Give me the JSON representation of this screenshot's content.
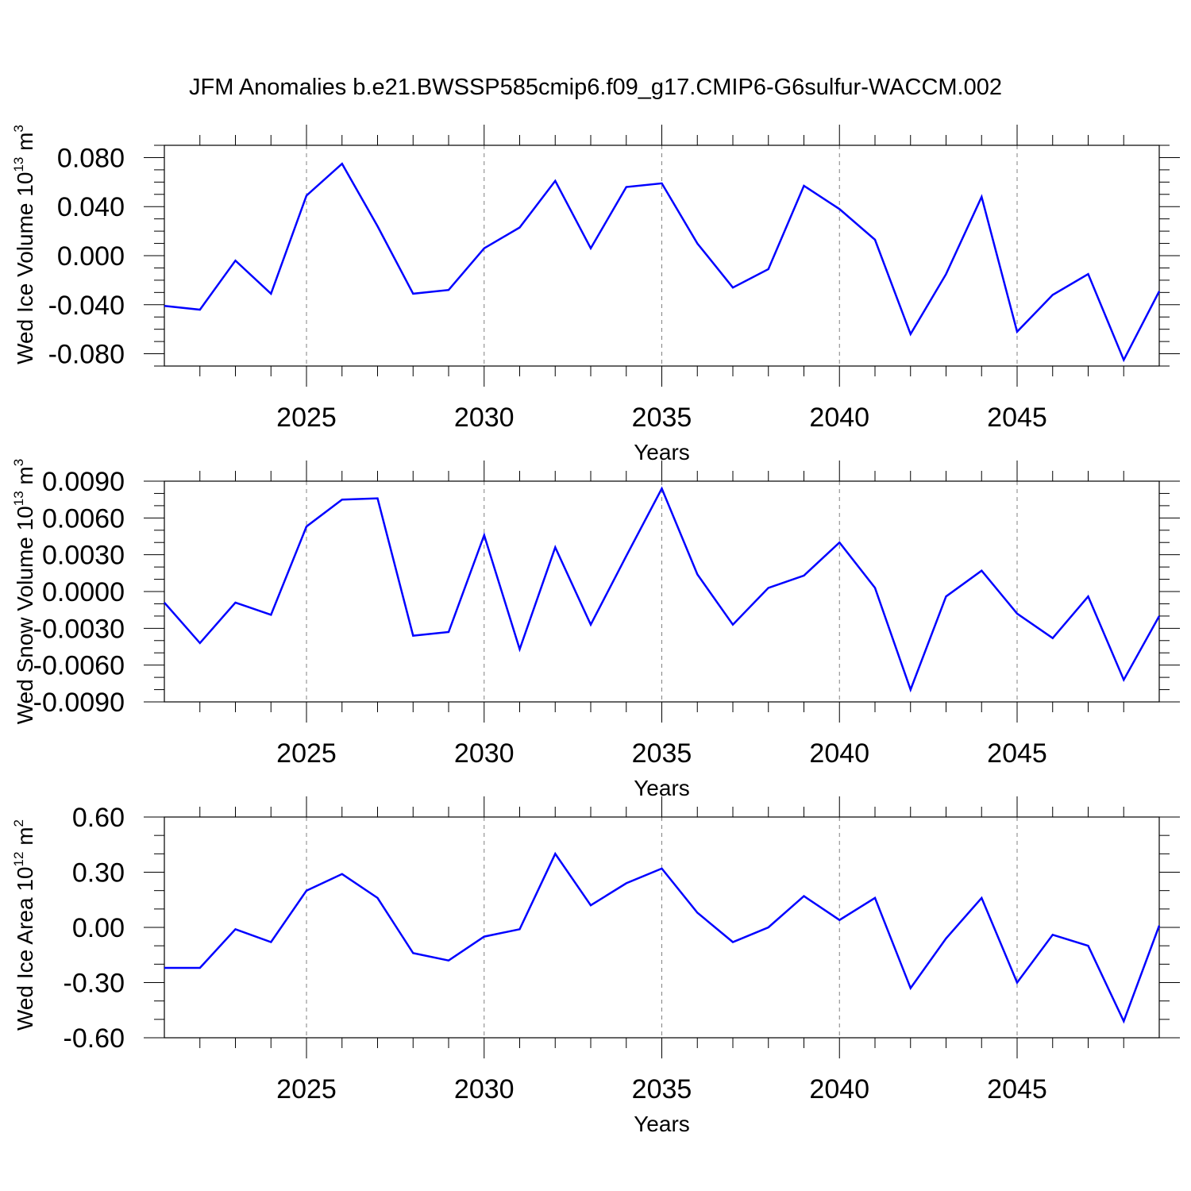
{
  "title": "JFM Anomalies b.e21.BWSSP585cmip6.f09_g17.CMIP6-G6sulfur-WACCM.002",
  "colors": {
    "line": "#0000ff",
    "axis": "#000000",
    "grid": "#808080",
    "background": "#ffffff"
  },
  "chart_data": [
    {
      "type": "line",
      "xlabel": "Years",
      "ylabel_parts": [
        "Wed Ice Volume 10",
        "13",
        " m",
        "3"
      ],
      "xlim": [
        2021,
        2049
      ],
      "ylim": [
        -0.09,
        0.09
      ],
      "x_ticks": [
        2025,
        2030,
        2035,
        2040,
        2045
      ],
      "x_tick_labels": [
        "2025",
        "2030",
        "2035",
        "2040",
        "2045"
      ],
      "y_ticks": [
        -0.08,
        -0.04,
        0.0,
        0.04,
        0.08
      ],
      "y_tick_labels": [
        "-0.080",
        "-0.040",
        "0.000",
        "0.040",
        "0.080"
      ],
      "y_minor_step": 0.01,
      "grid": "dashed vertical at major x ticks",
      "series": [
        {
          "x": [
            2021,
            2022,
            2023,
            2024,
            2025,
            2026,
            2027,
            2028,
            2029,
            2030,
            2031,
            2032,
            2033,
            2034,
            2035,
            2036,
            2037,
            2038,
            2039,
            2040,
            2041,
            2042,
            2043,
            2044,
            2045,
            2046,
            2047,
            2048,
            2049
          ],
          "values": [
            -0.041,
            -0.044,
            -0.004,
            -0.031,
            0.049,
            0.075,
            0.024,
            -0.031,
            -0.028,
            0.006,
            0.023,
            0.061,
            0.006,
            0.056,
            0.059,
            0.01,
            -0.026,
            -0.011,
            0.057,
            0.038,
            0.013,
            -0.064,
            -0.015,
            0.048,
            -0.062,
            -0.032,
            -0.015,
            -0.085,
            -0.029
          ]
        }
      ]
    },
    {
      "type": "line",
      "xlabel": "Years",
      "ylabel_parts": [
        "Wed Snow Volume 10",
        "13",
        " m",
        "3"
      ],
      "xlim": [
        2021,
        2049
      ],
      "ylim": [
        -0.009,
        0.009
      ],
      "x_ticks": [
        2025,
        2030,
        2035,
        2040,
        2045
      ],
      "x_tick_labels": [
        "2025",
        "2030",
        "2035",
        "2040",
        "2045"
      ],
      "y_ticks": [
        -0.009,
        -0.006,
        -0.003,
        0.0,
        0.003,
        0.006,
        0.009
      ],
      "y_tick_labels": [
        "-0.0090",
        "-0.0060",
        "-0.0030",
        "0.0000",
        "0.0030",
        "0.0060",
        "0.0090"
      ],
      "y_minor_step": 0.001,
      "grid": "dashed vertical at major x ticks",
      "series": [
        {
          "x": [
            2021,
            2022,
            2023,
            2024,
            2025,
            2026,
            2027,
            2028,
            2029,
            2030,
            2031,
            2032,
            2033,
            2034,
            2035,
            2036,
            2037,
            2038,
            2039,
            2040,
            2041,
            2042,
            2043,
            2044,
            2045,
            2046,
            2047,
            2048,
            2049
          ],
          "values": [
            -0.0009,
            -0.0042,
            -0.0009,
            -0.0019,
            0.0053,
            0.0075,
            0.0076,
            -0.0036,
            -0.0033,
            0.0046,
            -0.0047,
            0.0036,
            -0.0027,
            0.0029,
            0.0084,
            0.0014,
            -0.0027,
            0.0003,
            0.0013,
            0.004,
            0.0003,
            -0.008,
            -0.0004,
            0.0017,
            -0.0018,
            -0.0038,
            -0.0004,
            -0.0072,
            -0.002
          ]
        }
      ]
    },
    {
      "type": "line",
      "xlabel": "Years",
      "ylabel_parts": [
        "Wed Ice Area 10",
        "12",
        " m",
        "2"
      ],
      "xlim": [
        2021,
        2049
      ],
      "ylim": [
        -0.6,
        0.6
      ],
      "x_ticks": [
        2025,
        2030,
        2035,
        2040,
        2045
      ],
      "x_tick_labels": [
        "2025",
        "2030",
        "2035",
        "2040",
        "2045"
      ],
      "y_ticks": [
        -0.6,
        -0.3,
        0.0,
        0.3,
        0.6
      ],
      "y_tick_labels": [
        "-0.60",
        "-0.30",
        "0.00",
        "0.30",
        "0.60"
      ],
      "y_minor_step": 0.1,
      "grid": "dashed vertical at major x ticks",
      "series": [
        {
          "x": [
            2021,
            2022,
            2023,
            2024,
            2025,
            2026,
            2027,
            2028,
            2029,
            2030,
            2031,
            2032,
            2033,
            2034,
            2035,
            2036,
            2037,
            2038,
            2039,
            2040,
            2041,
            2042,
            2043,
            2044,
            2045,
            2046,
            2047,
            2048,
            2049
          ],
          "values": [
            -0.22,
            -0.22,
            -0.01,
            -0.08,
            0.2,
            0.29,
            0.16,
            -0.14,
            -0.18,
            -0.05,
            -0.01,
            0.4,
            0.12,
            0.24,
            0.32,
            0.08,
            -0.08,
            0.0,
            0.17,
            0.04,
            0.16,
            -0.33,
            -0.06,
            0.16,
            -0.3,
            -0.04,
            -0.1,
            -0.51,
            0.01
          ]
        }
      ]
    }
  ]
}
